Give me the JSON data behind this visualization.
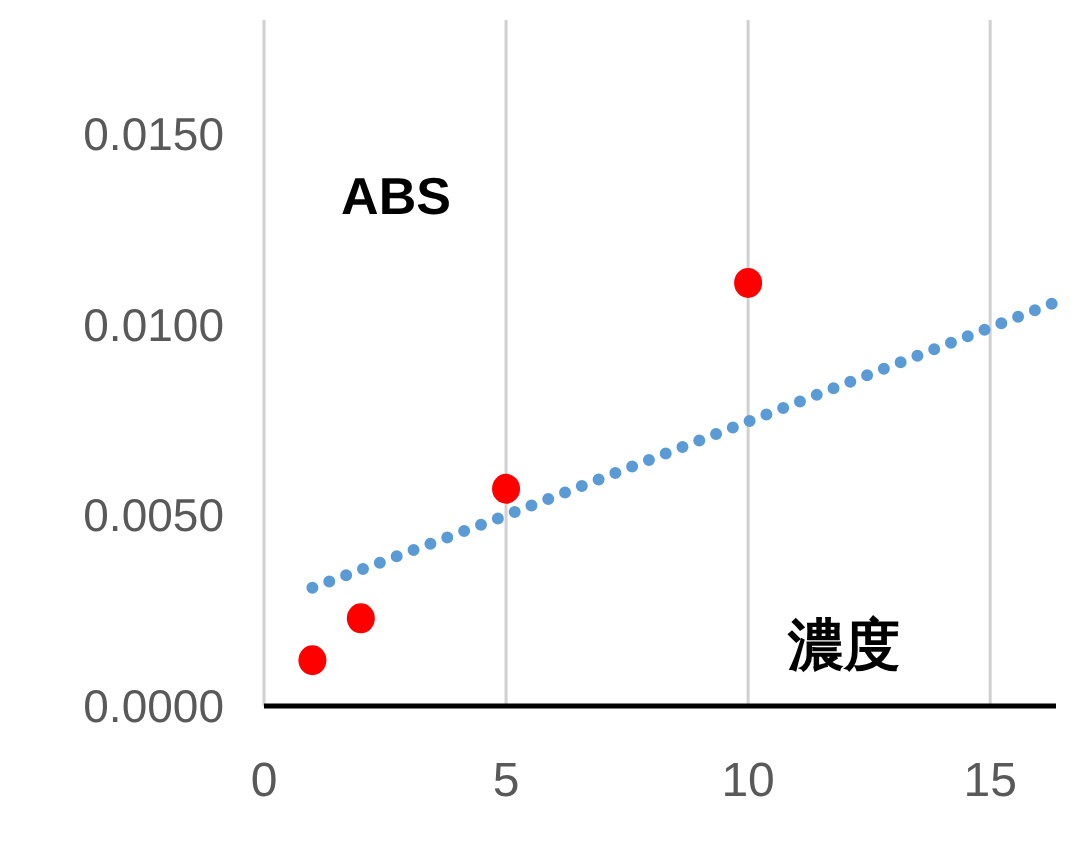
{
  "chart_data": {
    "type": "scatter",
    "xlabel": "濃度",
    "ylabel": "ABS",
    "xlim": [
      0,
      16.36
    ],
    "ylim": [
      0,
      0.018
    ],
    "xticks": [
      0,
      5,
      10,
      15
    ],
    "yticks": [
      {
        "value": 0,
        "label": "0.0000"
      },
      {
        "value": 0.005,
        "label": "0.0050"
      },
      {
        "value": 0.01,
        "label": "0.0100"
      },
      {
        "value": 0.015,
        "label": "0.0150"
      }
    ],
    "grid": "x",
    "series": [
      {
        "marker": "circle",
        "color": "#ff0000",
        "x": [
          1,
          2,
          5,
          10
        ],
        "values": [
          0.0012,
          0.0023,
          0.0057,
          0.0111
        ]
      },
      {
        "type": "line",
        "line_style": "dotted",
        "color": "#5b9bd5",
        "x": [
          1,
          5,
          16.36
        ],
        "values": [
          0.0031,
          0.005,
          0.0106
        ]
      }
    ]
  }
}
